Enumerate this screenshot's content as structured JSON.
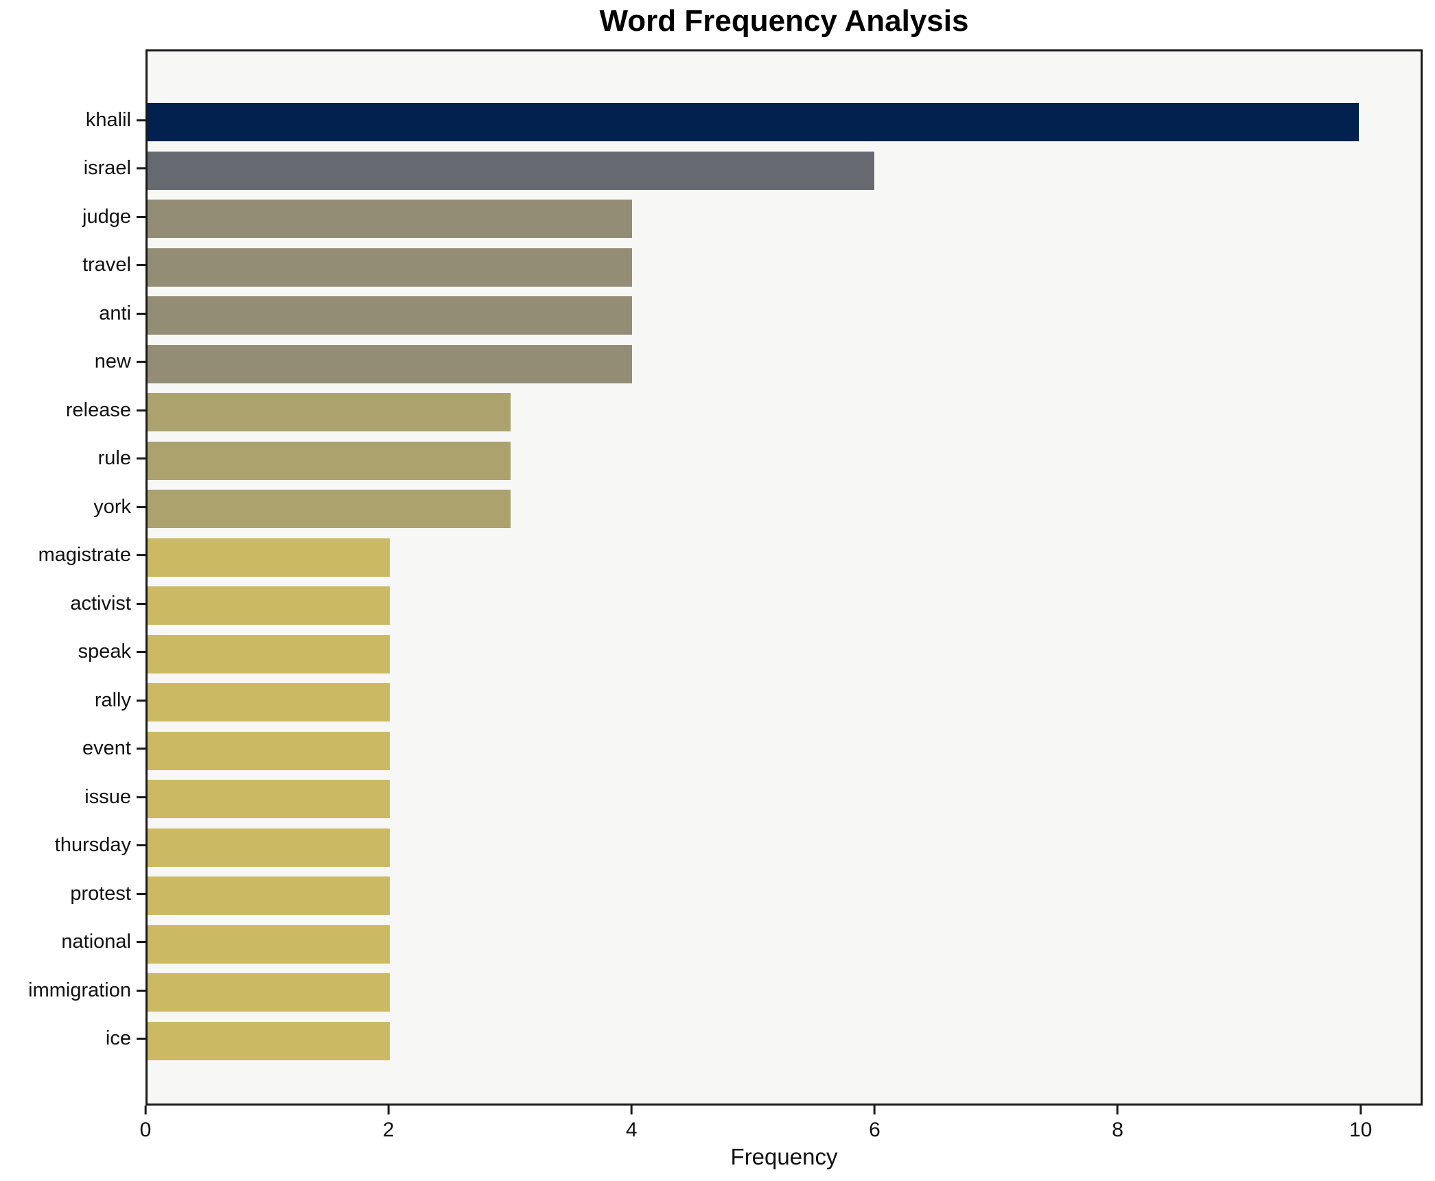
{
  "chart_data": {
    "type": "bar",
    "orientation": "horizontal",
    "title": "Word Frequency Analysis",
    "xlabel": "Frequency",
    "ylabel": "",
    "categories": [
      "khalil",
      "israel",
      "judge",
      "travel",
      "anti",
      "new",
      "release",
      "rule",
      "york",
      "magistrate",
      "activist",
      "speak",
      "rally",
      "event",
      "issue",
      "thursday",
      "protest",
      "national",
      "immigration",
      "ice"
    ],
    "values": [
      10,
      6,
      4,
      4,
      4,
      4,
      3,
      3,
      3,
      2,
      2,
      2,
      2,
      2,
      2,
      2,
      2,
      2,
      2,
      2
    ],
    "bar_colors": [
      "#02214e",
      "#666a70",
      "#948d75",
      "#948d75",
      "#948d75",
      "#948d75",
      "#aba26e",
      "#aba26e",
      "#aba26e",
      "#cbb963",
      "#cbb963",
      "#cbb963",
      "#cbb963",
      "#cbb963",
      "#cbb963",
      "#cbb963",
      "#cbb963",
      "#cbb963",
      "#cbb963",
      "#cbb963"
    ],
    "x_ticks": [
      0,
      2,
      4,
      6,
      8,
      10
    ],
    "xlim": [
      0,
      10.51
    ],
    "grid": false,
    "legend": null,
    "plot_background": "#f7f7f5",
    "figure_background": "#ffffff",
    "spine_color": "#1a1a1a",
    "text_color": "#111111"
  }
}
